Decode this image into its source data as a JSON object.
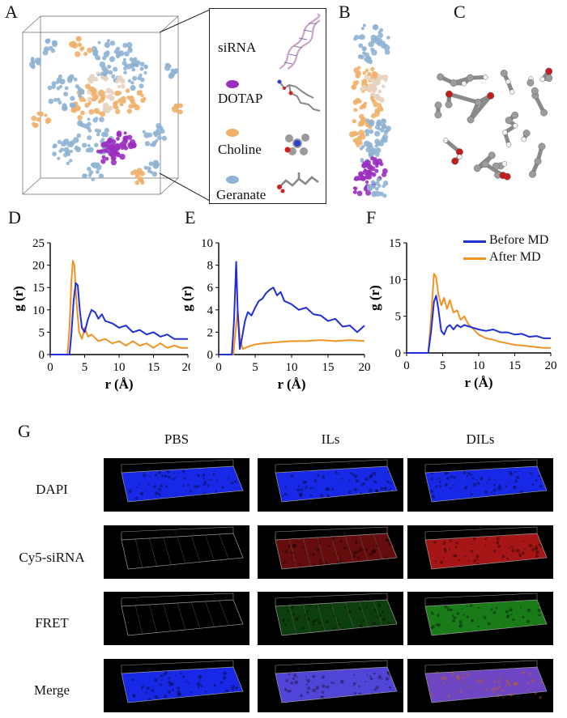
{
  "panel_letters": {
    "A": "A",
    "B": "B",
    "C": "C",
    "D": "D",
    "E": "E",
    "F": "F",
    "G": "G"
  },
  "panel_a_legend": {
    "items": [
      {
        "label": "siRNA",
        "swatch": "#e8d2c0"
      },
      {
        "label": "DOTAP",
        "swatch": "#9b2fbf"
      },
      {
        "label": "Choline",
        "swatch": "#f0b06a"
      },
      {
        "label": "Geranate",
        "swatch": "#8fb3d4"
      }
    ]
  },
  "colors": {
    "before_md": "#1f2fd6",
    "after_md": "#f29222",
    "siRNA": "#e8d2c0",
    "dotap": "#9b2fbf",
    "choline": "#f0b06a",
    "geranate": "#8fb3d4",
    "dapi": "#1a2cff",
    "cy5": "#b81818",
    "fret": "#1c8a1c"
  },
  "chart_data": [
    {
      "type": "line",
      "panel": "D",
      "xlabel": "r (Å)",
      "ylabel": "g (r)",
      "xlim": [
        0,
        20
      ],
      "ylim": [
        0,
        25
      ],
      "xticks": [
        "0",
        "5",
        "10",
        "15",
        "20"
      ],
      "yticks": [
        "0",
        "5",
        "10",
        "15",
        "20",
        "25"
      ],
      "series": [
        {
          "name": "Before MD",
          "x": [
            0,
            2.8,
            3.1,
            3.4,
            3.7,
            4.0,
            4.3,
            4.6,
            5.0,
            5.5,
            6.0,
            6.5,
            7.0,
            7.5,
            8.0,
            9.0,
            10.0,
            11.0,
            12.0,
            13.0,
            14.0,
            15.0,
            16.0,
            17.0,
            18.0,
            19.0,
            20.0
          ],
          "y": [
            0,
            0,
            5.0,
            12.0,
            16.0,
            15.5,
            10.0,
            6.0,
            5.0,
            8.0,
            10.0,
            9.5,
            8.0,
            9.0,
            7.5,
            7.0,
            6.0,
            6.5,
            5.0,
            5.5,
            4.5,
            5.0,
            4.0,
            4.5,
            3.5,
            3.5,
            3.5
          ]
        },
        {
          "name": "After MD",
          "x": [
            0,
            2.5,
            2.8,
            3.1,
            3.3,
            3.5,
            3.8,
            4.2,
            4.6,
            5.0,
            5.5,
            6.0,
            7.0,
            8.0,
            9.0,
            10.0,
            11.0,
            12.0,
            13.0,
            14.0,
            15.0,
            16.0,
            17.0,
            18.0,
            19.0,
            20.0
          ],
          "y": [
            0,
            0,
            6.0,
            17.0,
            21.0,
            20.0,
            12.0,
            5.0,
            3.5,
            6.0,
            4.0,
            4.5,
            3.0,
            3.5,
            2.5,
            3.0,
            2.0,
            3.0,
            2.0,
            2.5,
            1.5,
            2.5,
            1.5,
            2.0,
            1.5,
            1.5
          ]
        }
      ]
    },
    {
      "type": "line",
      "panel": "E",
      "xlabel": "r (Å)",
      "ylabel": "g (r)",
      "xlim": [
        0,
        20
      ],
      "ylim": [
        0,
        10
      ],
      "xticks": [
        "0",
        "5",
        "10",
        "15",
        "20"
      ],
      "yticks": [
        "0",
        "2",
        "4",
        "6",
        "8",
        "10"
      ],
      "series": [
        {
          "name": "Before MD",
          "x": [
            0,
            1.8,
            2.1,
            2.4,
            2.6,
            2.9,
            3.2,
            3.6,
            4.0,
            4.5,
            5.0,
            5.5,
            6.0,
            6.5,
            7.0,
            7.5,
            8.0,
            8.5,
            9.0,
            10.0,
            11.0,
            12.0,
            13.0,
            14.0,
            15.0,
            16.0,
            17.0,
            18.0,
            19.0,
            20.0
          ],
          "y": [
            0,
            0,
            3.0,
            8.3,
            4.0,
            0.5,
            1.5,
            3.0,
            3.8,
            3.5,
            4.2,
            4.8,
            5.0,
            5.5,
            5.8,
            6.0,
            5.3,
            5.6,
            4.8,
            4.5,
            4.0,
            4.2,
            3.6,
            3.5,
            3.0,
            3.2,
            2.5,
            2.6,
            2.0,
            2.6
          ]
        },
        {
          "name": "After MD",
          "x": [
            0,
            2.0,
            2.3,
            2.6,
            2.9,
            3.3,
            4.0,
            5.0,
            6.0,
            8.0,
            10.0,
            12.0,
            14.0,
            16.0,
            18.0,
            20.0
          ],
          "y": [
            0,
            0,
            2.0,
            3.9,
            1.5,
            0.5,
            0.7,
            0.9,
            1.0,
            1.1,
            1.2,
            1.2,
            1.3,
            1.2,
            1.3,
            1.2
          ]
        }
      ]
    },
    {
      "type": "line",
      "panel": "F",
      "xlabel": "r (Å)",
      "ylabel": "g (r)",
      "xlim": [
        0,
        20
      ],
      "ylim": [
        0,
        15
      ],
      "xticks": [
        "0",
        "5",
        "10",
        "15",
        "20"
      ],
      "yticks": [
        "0",
        "5",
        "10",
        "15"
      ],
      "legend_position": "top-right",
      "series": [
        {
          "name": "Before MD",
          "x": [
            0,
            3.0,
            3.4,
            3.8,
            4.1,
            4.4,
            4.8,
            5.2,
            5.6,
            6.0,
            6.5,
            7.0,
            7.5,
            8.0,
            9.0,
            10.0,
            11.0,
            12.0,
            13.0,
            14.0,
            15.0,
            16.0,
            17.0,
            18.0,
            19.0,
            20.0
          ],
          "y": [
            0,
            0,
            3.0,
            7.0,
            7.8,
            6.0,
            3.0,
            2.5,
            3.5,
            3.8,
            3.2,
            3.8,
            3.5,
            3.8,
            3.5,
            3.2,
            3.0,
            3.2,
            2.8,
            2.8,
            2.5,
            2.6,
            2.2,
            2.3,
            2.0,
            2.0
          ]
        },
        {
          "name": "After MD",
          "x": [
            0,
            3.0,
            3.4,
            3.8,
            4.1,
            4.4,
            4.8,
            5.2,
            5.6,
            6.0,
            6.5,
            7.0,
            7.5,
            8.0,
            8.5,
            9.0,
            10.0,
            11.0,
            12.0,
            13.0,
            14.0,
            15.0,
            16.0,
            17.0,
            18.0,
            19.0,
            20.0
          ],
          "y": [
            0,
            0,
            5.0,
            10.8,
            10.3,
            8.0,
            6.5,
            7.5,
            6.0,
            7.2,
            5.5,
            5.8,
            4.5,
            5.0,
            4.0,
            3.5,
            2.5,
            2.0,
            1.8,
            1.5,
            1.3,
            1.1,
            1.0,
            0.9,
            0.8,
            0.7,
            0.7
          ]
        }
      ]
    }
  ],
  "panel_g": {
    "columns": [
      "PBS",
      "ILs",
      "DILs"
    ],
    "rows": [
      "DAPI",
      "Cy5-siRNA",
      "FRET",
      "Merge"
    ]
  }
}
